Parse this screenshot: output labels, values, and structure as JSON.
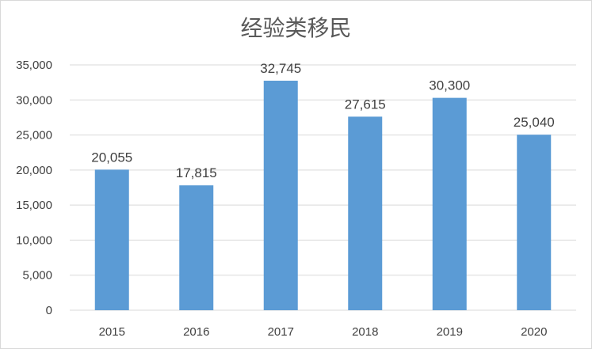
{
  "chart_data": {
    "type": "bar",
    "title": "经验类移民",
    "categories": [
      "2015",
      "2016",
      "2017",
      "2018",
      "2019",
      "2020"
    ],
    "values": [
      20055,
      17815,
      32745,
      27615,
      30300,
      25040
    ],
    "value_labels": [
      "20,055",
      "17,815",
      "32,745",
      "27,615",
      "30,300",
      "25,040"
    ],
    "ylim": [
      0,
      35000
    ],
    "yticks": [
      0,
      5000,
      10000,
      15000,
      20000,
      25000,
      30000,
      35000
    ],
    "ytick_labels": [
      "0",
      "5,000",
      "10,000",
      "15,000",
      "20,000",
      "25,000",
      "30,000",
      "35,000"
    ],
    "grid": true,
    "legend": "none",
    "colors": {
      "bar": "#5b9bd5",
      "grid": "#d9d9d9",
      "text": "#404040",
      "title": "#595959"
    }
  }
}
